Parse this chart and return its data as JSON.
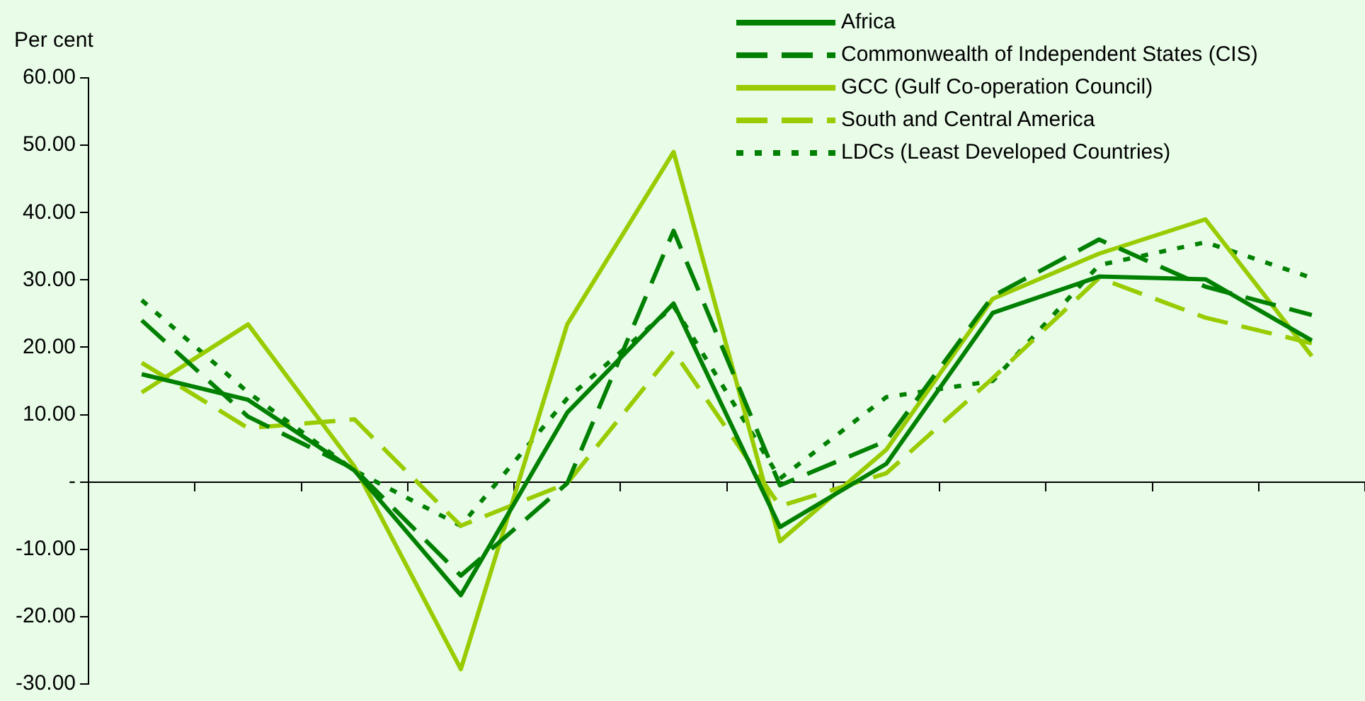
{
  "chart_data": {
    "type": "line",
    "ylabel": "Per cent",
    "categories": [
      null,
      null,
      null,
      null,
      null,
      null,
      null,
      null,
      null,
      null,
      null,
      null
    ],
    "series": [
      {
        "name": "Africa",
        "color": "#008000",
        "line_style": "solid",
        "values": [
          16.0,
          12.2,
          1.7,
          -16.8,
          10.3,
          26.5,
          -6.7,
          2.7,
          25.1,
          30.5,
          30.1,
          21.0
        ]
      },
      {
        "name": "Commonwealth of Independent States (CIS)",
        "color": "#008000",
        "line_style": "dashed",
        "values": [
          24.0,
          9.7,
          1.9,
          -13.9,
          -0.2,
          37.3,
          -0.5,
          6.1,
          27.6,
          36.0,
          29.0,
          24.8
        ]
      },
      {
        "name": "GCC (Gulf Co-operation Council)",
        "color": "#99cc00",
        "line_style": "solid",
        "values": [
          13.3,
          23.4,
          2.3,
          -27.8,
          23.4,
          49.0,
          -8.8,
          4.8,
          27.2,
          33.9,
          39.0,
          18.7
        ]
      },
      {
        "name": "South and Central America",
        "color": "#99cc00",
        "line_style": "dashed",
        "values": [
          17.7,
          8.0,
          9.3,
          -6.5,
          -0.2,
          19.4,
          -3.6,
          1.3,
          15.4,
          30.3,
          24.4,
          20.6
        ]
      },
      {
        "name": "LDCs (Least Developed Countries)",
        "color": "#008000",
        "line_style": "dotted",
        "values": [
          27.0,
          13.3,
          1.7,
          -6.5,
          12.4,
          26.1,
          0.5,
          12.6,
          15.0,
          32.2,
          35.6,
          30.3
        ]
      }
    ],
    "ylim": [
      -30,
      60
    ],
    "yticks": [
      {
        "value": 60,
        "label": "60.00"
      },
      {
        "value": 50,
        "label": "50.00"
      },
      {
        "value": 40,
        "label": "40.00"
      },
      {
        "value": 30,
        "label": "30.00"
      },
      {
        "value": 20,
        "label": "20.00"
      },
      {
        "value": 10,
        "label": "10.00"
      },
      {
        "value": 0,
        "label": "-"
      },
      {
        "value": -10,
        "label": "-10.00"
      },
      {
        "value": -20,
        "label": "-20.00"
      },
      {
        "value": -30,
        "label": "-30.00"
      }
    ],
    "legend": "top right",
    "marker": "none"
  }
}
